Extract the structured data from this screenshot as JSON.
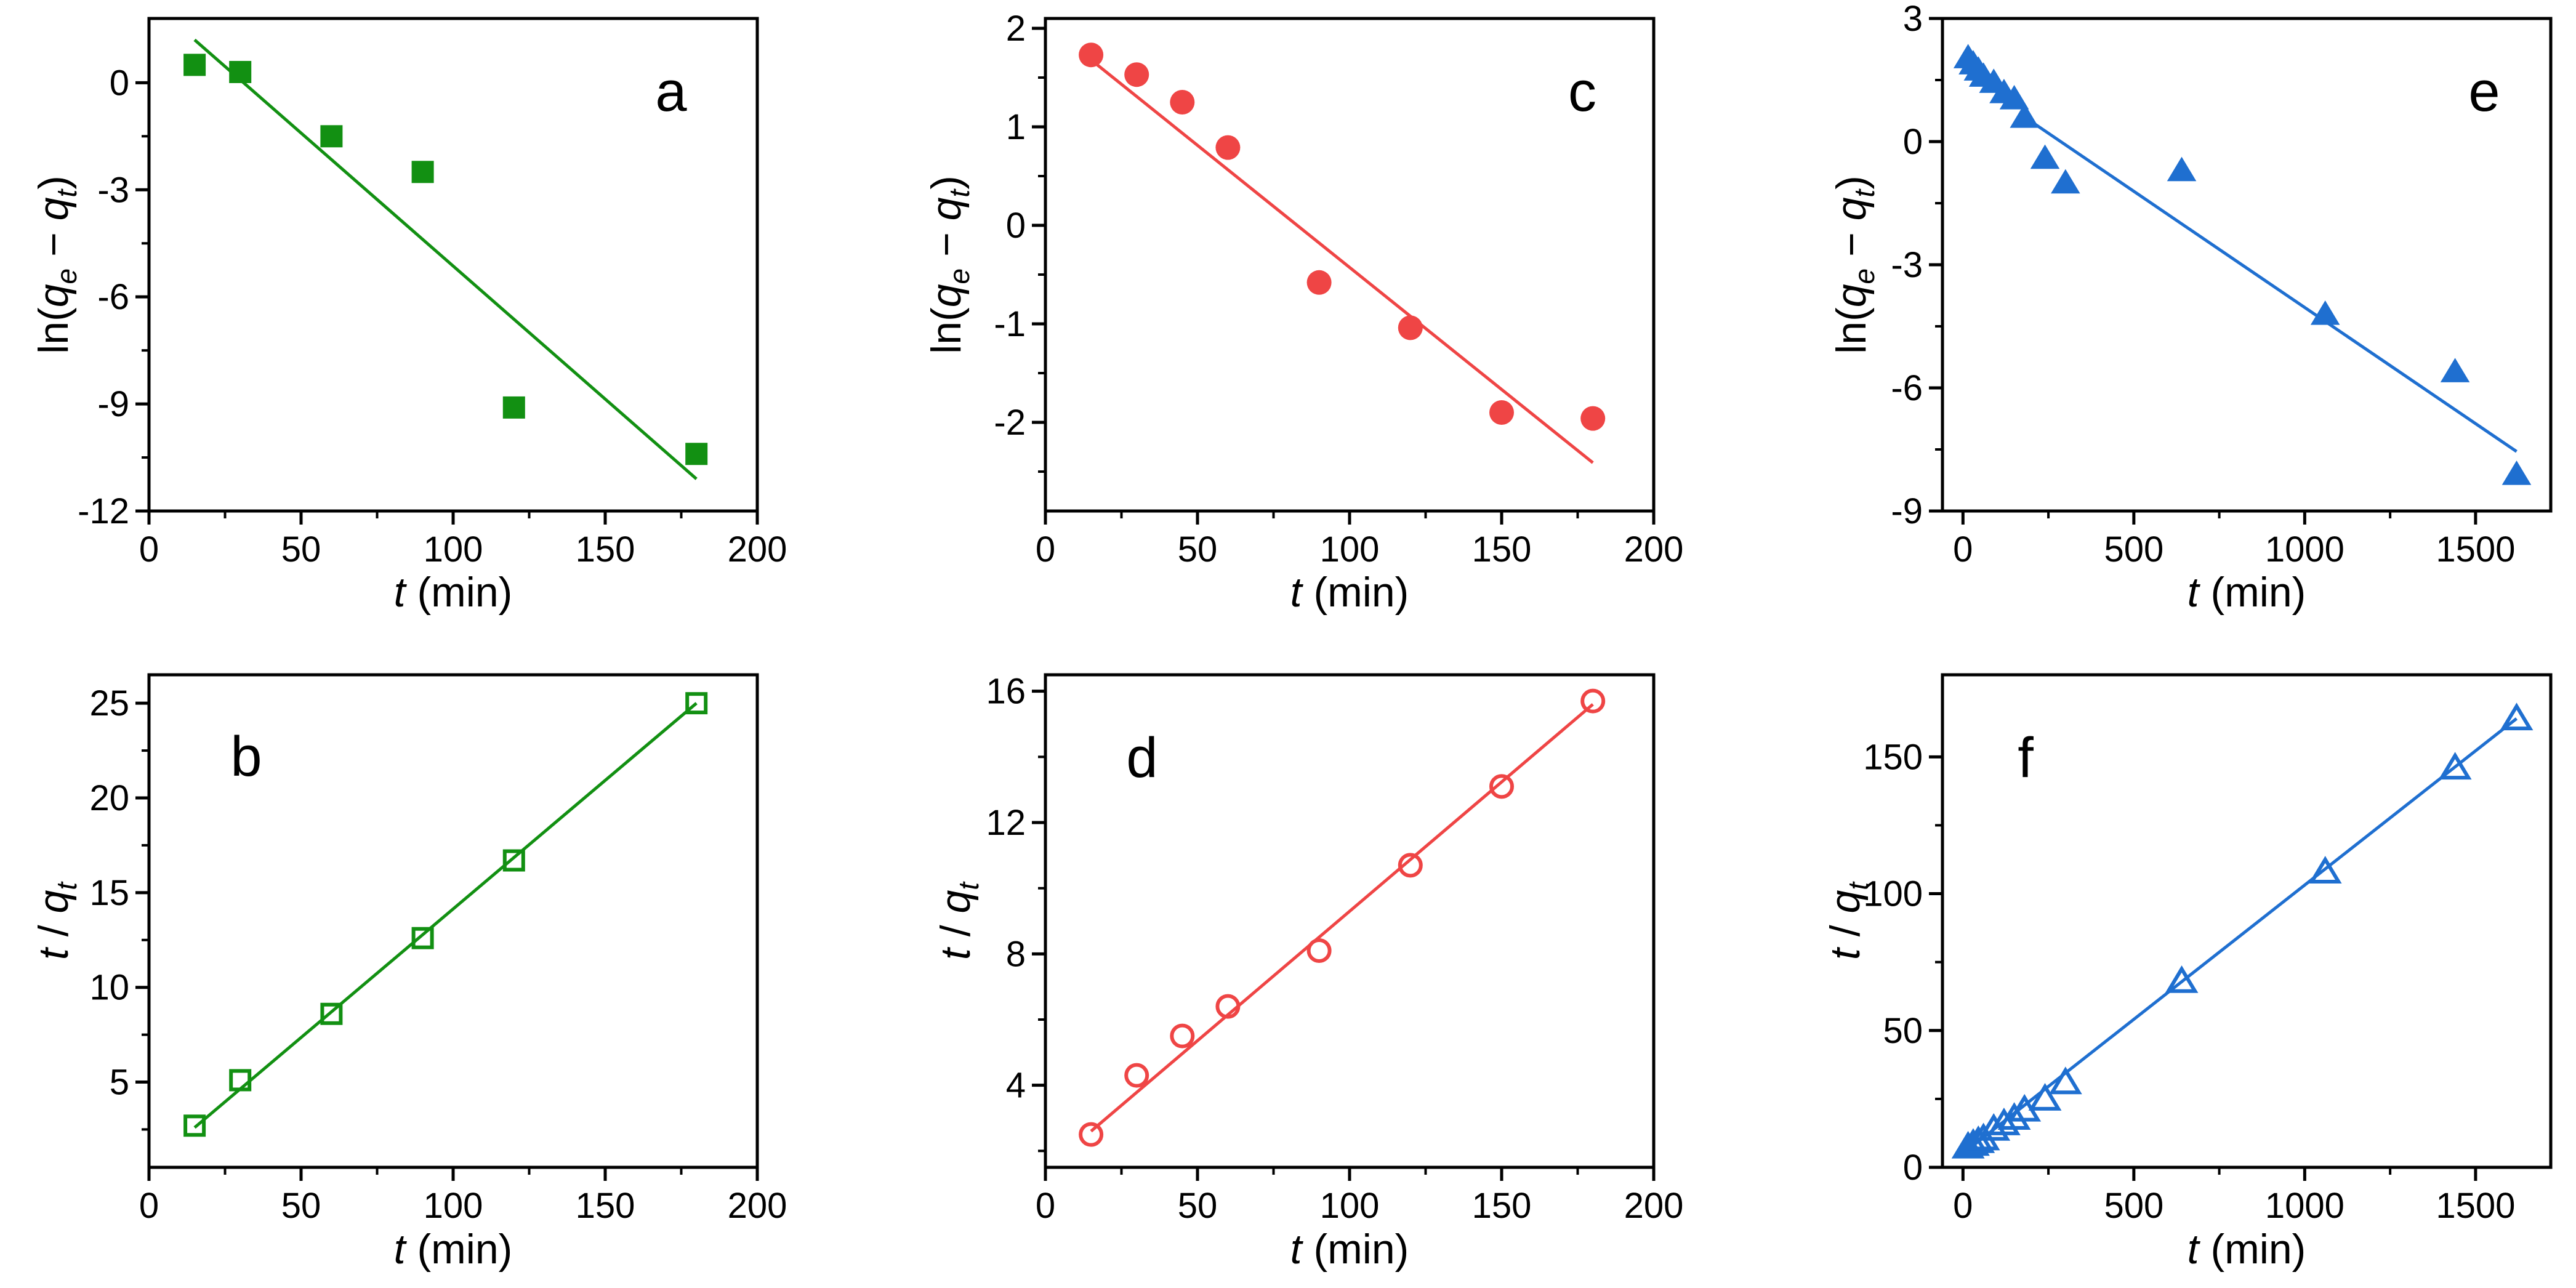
{
  "chart_data": [
    {
      "panel": "a",
      "type": "scatter",
      "marker": "square",
      "filled": true,
      "color": "#129012",
      "xlabel": "t (min)",
      "ylabel": "ln(qe − qt)",
      "xlim": [
        0,
        200
      ],
      "ylim": [
        -12,
        1.8
      ],
      "xticks": [
        0,
        50,
        100,
        150,
        200
      ],
      "yticks": [
        -12,
        -9,
        -6,
        -3,
        0
      ],
      "xminor": [
        25,
        75,
        125,
        175
      ],
      "yminor": [
        -10.5,
        -7.5,
        -4.5,
        -1.5
      ],
      "xticklabels": [
        "0",
        "50",
        "100",
        "150",
        "200"
      ],
      "yticklabels": [
        "-12",
        "-9",
        "-6",
        "-3",
        "0"
      ],
      "x": [
        15,
        30,
        60,
        90,
        120,
        180
      ],
      "y": [
        0.5,
        0.3,
        -1.5,
        -2.5,
        -9.1,
        -10.4
      ],
      "fit": {
        "x": [
          15,
          180
        ],
        "y": [
          1.2,
          -11.1
        ]
      }
    },
    {
      "panel": "b",
      "type": "scatter",
      "marker": "square",
      "filled": false,
      "color": "#129012",
      "xlabel": "t (min)",
      "ylabel": "t / qt",
      "xlim": [
        0,
        200
      ],
      "ylim": [
        0.5,
        26.5
      ],
      "xticks": [
        0,
        50,
        100,
        150,
        200
      ],
      "yticks": [
        5,
        10,
        15,
        20,
        25
      ],
      "xminor": [
        25,
        75,
        125,
        175
      ],
      "yminor": [
        2.5,
        7.5,
        12.5,
        17.5,
        22.5
      ],
      "xticklabels": [
        "0",
        "50",
        "100",
        "150",
        "200"
      ],
      "yticklabels": [
        "5",
        "10",
        "15",
        "20",
        "25"
      ],
      "x": [
        15,
        30,
        60,
        90,
        120,
        180
      ],
      "y": [
        2.7,
        5.1,
        8.6,
        12.6,
        16.7,
        25.0
      ],
      "fit": {
        "x": [
          15,
          180
        ],
        "y": [
          2.6,
          25.0
        ]
      }
    },
    {
      "panel": "c",
      "type": "scatter",
      "marker": "circle",
      "filled": true,
      "color": "#ef4545",
      "xlabel": "t (min)",
      "ylabel": "ln(qe − qt)",
      "xlim": [
        0,
        200
      ],
      "ylim": [
        -2.9,
        2.1
      ],
      "xticks": [
        0,
        50,
        100,
        150,
        200
      ],
      "yticks": [
        -2,
        -1,
        0,
        1,
        2
      ],
      "xminor": [
        25,
        75,
        125,
        175
      ],
      "yminor": [
        -2.5,
        -1.5,
        -0.5,
        0.5,
        1.5
      ],
      "xticklabels": [
        "0",
        "50",
        "100",
        "150",
        "200"
      ],
      "yticklabels": [
        "-2",
        "-1",
        "0",
        "1",
        "2"
      ],
      "x": [
        15,
        30,
        45,
        60,
        90,
        120,
        150,
        180
      ],
      "y": [
        1.73,
        1.53,
        1.25,
        0.79,
        -0.58,
        -1.04,
        -1.9,
        -1.96
      ],
      "fit": {
        "x": [
          15,
          180
        ],
        "y": [
          1.68,
          -2.41
        ]
      }
    },
    {
      "panel": "d",
      "type": "scatter",
      "marker": "circle",
      "filled": false,
      "color": "#ef4545",
      "xlabel": "t (min)",
      "ylabel": "t / qt",
      "xlim": [
        0,
        200
      ],
      "ylim": [
        1.5,
        16.5
      ],
      "xticks": [
        0,
        50,
        100,
        150,
        200
      ],
      "yticks": [
        4,
        8,
        12,
        16
      ],
      "xminor": [
        25,
        75,
        125,
        175
      ],
      "yminor": [
        2,
        6,
        10,
        14
      ],
      "xticklabels": [
        "0",
        "50",
        "100",
        "150",
        "200"
      ],
      "yticklabels": [
        "4",
        "8",
        "12",
        "16"
      ],
      "x": [
        15,
        30,
        45,
        60,
        90,
        120,
        150,
        180
      ],
      "y": [
        2.5,
        4.3,
        5.5,
        6.4,
        8.1,
        10.7,
        13.1,
        15.7
      ],
      "fit": {
        "x": [
          15,
          180
        ],
        "y": [
          2.6,
          15.6
        ]
      }
    },
    {
      "panel": "e",
      "type": "scatter",
      "marker": "triangle",
      "filled": true,
      "color": "#1f6fd0",
      "xlabel": "t (min)",
      "ylabel": "ln(qe − qt)",
      "xlim": [
        -60,
        1720
      ],
      "ylim": [
        -9,
        3
      ],
      "xticks": [
        0,
        500,
        1000,
        1500
      ],
      "yticks": [
        -9,
        -6,
        -3,
        0,
        3
      ],
      "xminor": [
        250,
        750,
        1250
      ],
      "yminor": [
        -7.5,
        -4.5,
        -1.5,
        1.5
      ],
      "xticklabels": [
        "0",
        "500",
        "1000",
        "1500"
      ],
      "yticklabels": [
        "-9",
        "-6",
        "-3",
        "0",
        "3"
      ],
      "x": [
        15,
        30,
        45,
        60,
        90,
        120,
        150,
        180,
        240,
        300,
        640,
        1060,
        1440,
        1620
      ],
      "y": [
        2.05,
        1.9,
        1.75,
        1.6,
        1.45,
        1.2,
        1.05,
        0.6,
        -0.4,
        -1.0,
        -0.7,
        -4.2,
        -5.6,
        -8.1
      ],
      "fit": {
        "x": [
          180,
          1620
        ],
        "y": [
          0.6,
          -7.55
        ]
      }
    },
    {
      "panel": "f",
      "type": "scatter",
      "marker": "triangle",
      "filled": false,
      "color": "#1f6fd0",
      "xlabel": "t (min)",
      "ylabel": "t / qt",
      "xlim": [
        -60,
        1720
      ],
      "ylim": [
        0,
        180
      ],
      "xticks": [
        0,
        500,
        1000,
        1500
      ],
      "yticks": [
        0,
        50,
        100,
        150
      ],
      "xminor": [
        250,
        750,
        1250
      ],
      "yminor": [
        25,
        75,
        125
      ],
      "xticklabels": [
        "0",
        "500",
        "1000",
        "1500"
      ],
      "yticklabels": [
        "0",
        "50",
        "100",
        "150"
      ],
      "x": [
        15,
        30,
        45,
        60,
        90,
        120,
        150,
        180,
        240,
        300,
        640,
        1060,
        1440,
        1620
      ],
      "y": [
        7.5,
        8.5,
        9.5,
        10.5,
        14,
        16,
        18,
        21,
        25,
        31,
        68,
        108,
        146,
        164
      ],
      "fit": {
        "x": [
          15,
          1620
        ],
        "y": [
          6.5,
          164
        ]
      }
    }
  ]
}
